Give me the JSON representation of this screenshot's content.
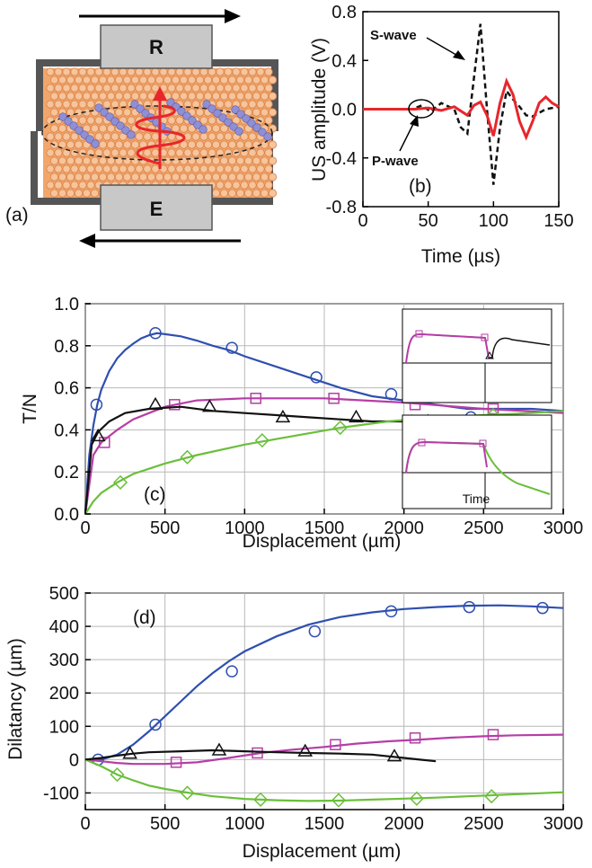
{
  "colors": {
    "blue": "#2f4fb0",
    "magenta": "#b53ea5",
    "black": "#111111",
    "green": "#6abf3a",
    "red": "#e8262b",
    "sample_orange": "#f2a66b",
    "bead_purple": "#8f8fd6",
    "platen_grey": "#bfbfbf"
  },
  "panel_a": {
    "label": "(a)",
    "receiver_label": "R",
    "emitter_label": "E",
    "icons": [
      "arrow-right-icon",
      "arrow-left-icon",
      "wave-arrow-icon"
    ]
  },
  "chart_data": [
    {
      "id": "b",
      "type": "line",
      "panel_label": "(b)",
      "xlabel": "Time (µs)",
      "ylabel": "US amplitude (V)",
      "xlim": [
        0,
        150
      ],
      "ylim": [
        -0.8,
        0.8
      ],
      "xticks": [
        "0",
        "50",
        "100",
        "150"
      ],
      "yticks": [
        "0.8",
        "0.4",
        "0.0",
        "-0.4",
        "-0.8"
      ],
      "grid": false,
      "annotations": [
        "S-wave",
        "P-wave"
      ],
      "series": [
        {
          "style": "dashed",
          "color": "#111111",
          "x": [
            0,
            38,
            45,
            52,
            60,
            70,
            75,
            80,
            85,
            90,
            95,
            100,
            105,
            110,
            115,
            120,
            125,
            130,
            140,
            150
          ],
          "y": [
            0,
            0,
            0.03,
            -0.02,
            0.05,
            0.0,
            -0.15,
            -0.2,
            0.25,
            0.7,
            0.0,
            -0.62,
            -0.15,
            0.15,
            0.08,
            0.02,
            -0.05,
            -0.06,
            0.0,
            0.02
          ]
        },
        {
          "style": "solid",
          "color": "#e8262b",
          "x": [
            0,
            40,
            50,
            60,
            70,
            80,
            85,
            90,
            95,
            100,
            105,
            110,
            115,
            120,
            125,
            130,
            135,
            140,
            145,
            150
          ],
          "y": [
            0,
            0,
            0.01,
            -0.01,
            0.02,
            -0.05,
            0.03,
            0.06,
            -0.05,
            -0.22,
            0.05,
            0.23,
            0.12,
            -0.1,
            -0.23,
            -0.1,
            0.05,
            0.1,
            0.05,
            0.02
          ]
        }
      ]
    },
    {
      "id": "c",
      "type": "line",
      "panel_label": "(c)",
      "xlabel": "Displacement (µm)",
      "ylabel": "T/N",
      "xlim": [
        0,
        3000
      ],
      "ylim": [
        0.0,
        1.0
      ],
      "xticks": [
        "0",
        "500",
        "1000",
        "1500",
        "2000",
        "2500",
        "3000"
      ],
      "yticks": [
        "0.0",
        "0.2",
        "0.4",
        "0.6",
        "0.8",
        "1.0"
      ],
      "grid": true,
      "inset_label": "Time",
      "series": [
        {
          "color": "#2f4fb0",
          "marker": "circle",
          "x": [
            0,
            25,
            50,
            75,
            100,
            150,
            200,
            250,
            300,
            350,
            400,
            450,
            500,
            600,
            700,
            800,
            900,
            1000,
            1200,
            1400,
            1600,
            1800,
            2000,
            2200,
            2400,
            2600,
            2800,
            3000
          ],
          "y": [
            0,
            0.28,
            0.42,
            0.52,
            0.59,
            0.68,
            0.74,
            0.78,
            0.81,
            0.835,
            0.85,
            0.86,
            0.855,
            0.845,
            0.825,
            0.8,
            0.78,
            0.75,
            0.7,
            0.65,
            0.6,
            0.56,
            0.54,
            0.52,
            0.5,
            0.5,
            0.5,
            0.49
          ],
          "marker_x": [
            70,
            440,
            920,
            1450,
            1920,
            2420
          ],
          "marker_y": [
            0.52,
            0.86,
            0.79,
            0.65,
            0.57,
            0.46
          ]
        },
        {
          "color": "#b53ea5",
          "marker": "square",
          "x": [
            0,
            50,
            100,
            150,
            200,
            300,
            400,
            500,
            700,
            1000,
            1500,
            2000,
            2500,
            3000
          ],
          "y": [
            0,
            0.28,
            0.34,
            0.37,
            0.4,
            0.45,
            0.48,
            0.51,
            0.54,
            0.55,
            0.55,
            0.53,
            0.5,
            0.48
          ],
          "marker_x": [
            120,
            560,
            1070,
            1560,
            2070,
            2560
          ],
          "marker_y": [
            0.34,
            0.52,
            0.55,
            0.55,
            0.52,
            0.5
          ]
        },
        {
          "color": "#111111",
          "marker": "triangle",
          "x": [
            0,
            40,
            80,
            150,
            250,
            400,
            600,
            800,
            1000,
            1200,
            1400,
            1600,
            1800,
            2000,
            2200
          ],
          "y": [
            0,
            0.33,
            0.39,
            0.44,
            0.48,
            0.5,
            0.51,
            0.49,
            0.48,
            0.47,
            0.46,
            0.45,
            0.44,
            0.44,
            0.43
          ],
          "marker_x": [
            80,
            440,
            780,
            1240,
            1700,
            2150
          ],
          "marker_y": [
            0.37,
            0.52,
            0.51,
            0.46,
            0.46,
            0.44
          ]
        },
        {
          "color": "#6abf3a",
          "marker": "diamond",
          "x": [
            0,
            50,
            100,
            200,
            300,
            500,
            700,
            1000,
            1300,
            1600,
            1900,
            2200,
            2500,
            2800,
            3000
          ],
          "y": [
            0,
            0.06,
            0.1,
            0.15,
            0.19,
            0.24,
            0.28,
            0.33,
            0.37,
            0.41,
            0.44,
            0.46,
            0.47,
            0.48,
            0.49
          ],
          "marker_x": [
            220,
            640,
            1110,
            1600,
            2050,
            2560
          ],
          "marker_y": [
            0.15,
            0.27,
            0.35,
            0.41,
            0.44,
            0.47
          ]
        }
      ]
    },
    {
      "id": "d",
      "type": "line",
      "panel_label": "(d)",
      "xlabel": "Displacement (µm)",
      "ylabel": "Dilatancy (µm)",
      "xlim": [
        0,
        3000
      ],
      "ylim": [
        -150,
        500
      ],
      "xticks": [
        "0",
        "500",
        "1000",
        "1500",
        "2000",
        "2500",
        "3000"
      ],
      "yticks": [
        "500",
        "400",
        "300",
        "200",
        "100",
        "0",
        "-100"
      ],
      "grid": true,
      "series": [
        {
          "color": "#2f4fb0",
          "marker": "circle",
          "x": [
            0,
            100,
            200,
            300,
            400,
            500,
            600,
            700,
            800,
            900,
            1000,
            1200,
            1400,
            1600,
            1800,
            2000,
            2200,
            2400,
            2600,
            2800,
            3000
          ],
          "y": [
            0,
            0,
            15,
            45,
            85,
            130,
            175,
            220,
            260,
            295,
            325,
            370,
            405,
            428,
            442,
            452,
            458,
            462,
            463,
            460,
            455
          ],
          "marker_x": [
            80,
            440,
            920,
            1440,
            1920,
            2410,
            2870
          ],
          "marker_y": [
            0,
            105,
            265,
            385,
            445,
            458,
            455
          ]
        },
        {
          "color": "#b53ea5",
          "marker": "square",
          "x": [
            0,
            100,
            200,
            300,
            500,
            700,
            900,
            1100,
            1300,
            1500,
            1700,
            1900,
            2100,
            2300,
            2500,
            2700,
            3000
          ],
          "y": [
            0,
            -5,
            -10,
            -13,
            -13,
            -8,
            5,
            20,
            30,
            38,
            48,
            55,
            60,
            66,
            70,
            73,
            75
          ],
          "marker_x": [
            570,
            1080,
            1570,
            2070,
            2560
          ],
          "marker_y": [
            -8,
            20,
            45,
            65,
            75
          ]
        },
        {
          "color": "#111111",
          "marker": "triangle",
          "x": [
            0,
            100,
            200,
            300,
            400,
            600,
            800,
            1000,
            1200,
            1400,
            1600,
            1800,
            2000,
            2100,
            2200
          ],
          "y": [
            0,
            5,
            12,
            18,
            22,
            25,
            28,
            25,
            22,
            20,
            18,
            15,
            5,
            0,
            -5
          ],
          "marker_x": [
            280,
            840,
            1380,
            1940
          ],
          "marker_y": [
            18,
            28,
            25,
            10
          ]
        },
        {
          "color": "#6abf3a",
          "marker": "diamond",
          "x": [
            0,
            100,
            200,
            300,
            400,
            500,
            600,
            800,
            1000,
            1200,
            1400,
            1600,
            1800,
            2000,
            2200,
            2400,
            2600,
            2800,
            3000
          ],
          "y": [
            0,
            -20,
            -45,
            -62,
            -78,
            -88,
            -96,
            -110,
            -118,
            -122,
            -124,
            -123,
            -120,
            -117,
            -114,
            -110,
            -106,
            -102,
            -98
          ],
          "marker_x": [
            200,
            640,
            1100,
            1590,
            2080,
            2550
          ],
          "marker_y": [
            -45,
            -100,
            -120,
            -122,
            -117,
            -110
          ]
        }
      ]
    }
  ]
}
